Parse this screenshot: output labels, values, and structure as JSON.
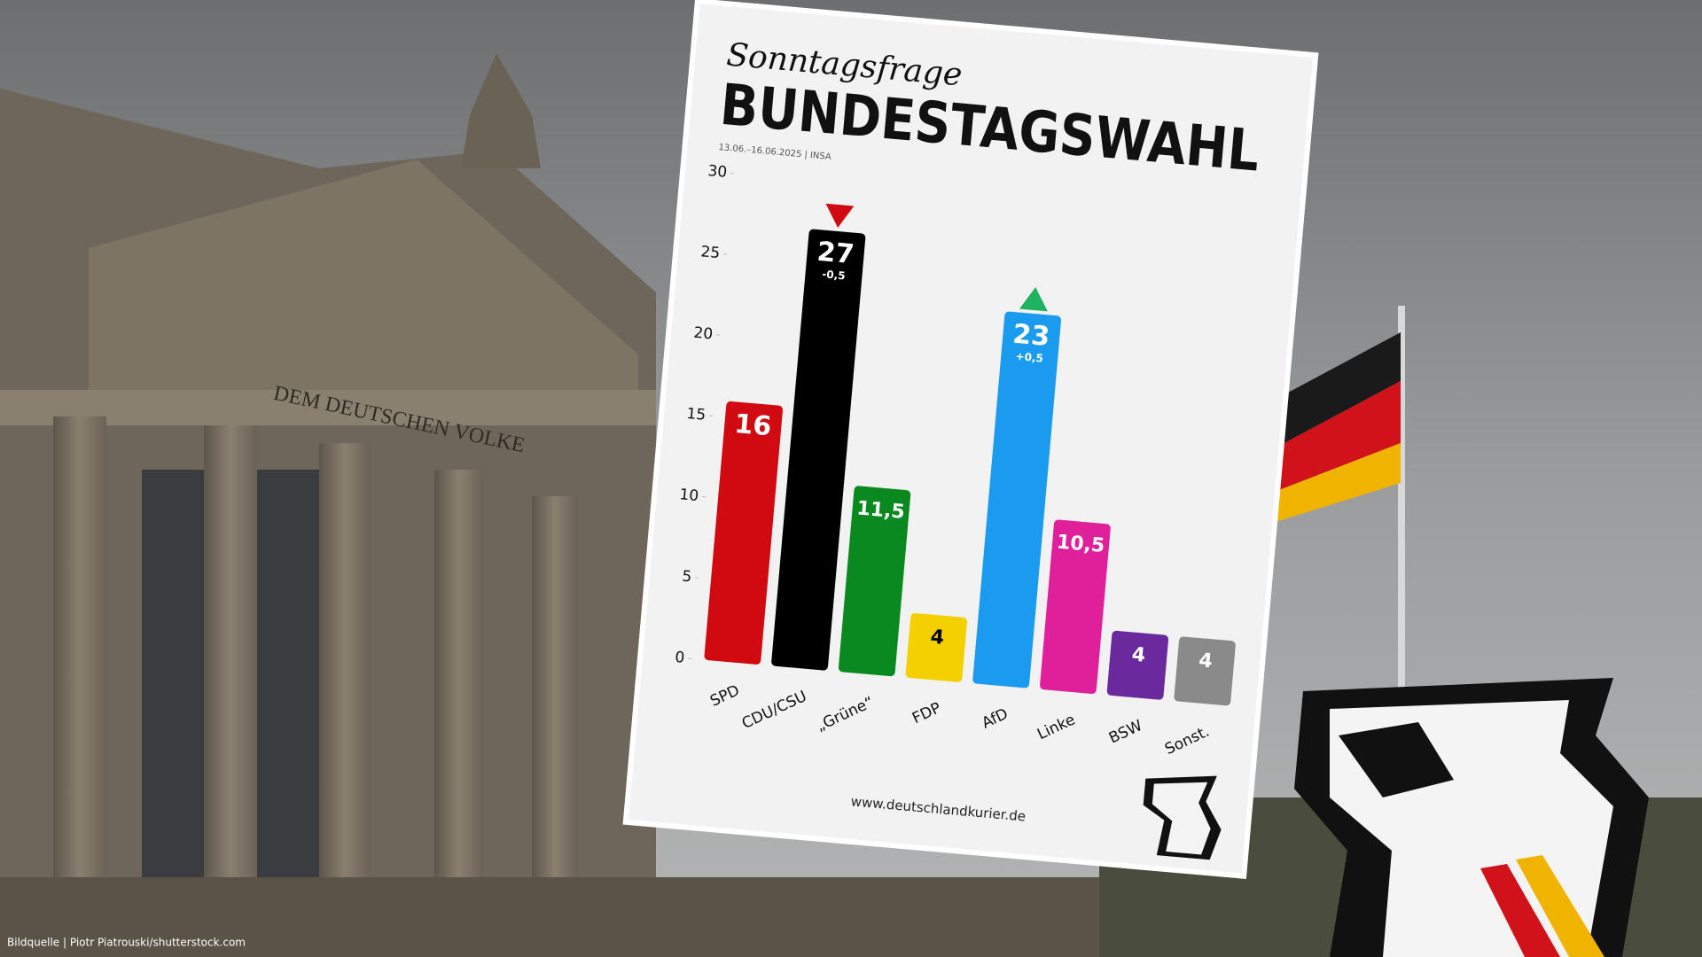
{
  "chart_data": {
    "type": "bar",
    "subtitle": "Sonntagsfrage",
    "title": "BUNDESTAGSWAHL",
    "note": "13.06.–16.06.2025 | INSA",
    "categories": [
      "SPD",
      "CDU/CSU",
      "„Grüne“",
      "FDP",
      "AfD",
      "Linke",
      "BSW",
      "Sonst."
    ],
    "values": [
      16,
      27,
      11.5,
      4,
      23,
      10.5,
      4,
      4
    ],
    "value_labels": [
      "16",
      "27",
      "11,5",
      "4",
      "23",
      "10,5",
      "4",
      "4"
    ],
    "colors": [
      "#d10a11",
      "#000000",
      "#0a8a1e",
      "#f5d000",
      "#1a9bf0",
      "#e0209a",
      "#6a2a9e",
      "#8a8a8a"
    ],
    "value_label_colors": [
      "#ffffff",
      "#ffffff",
      "#ffffff",
      "#000000",
      "#ffffff",
      "#ffffff",
      "#ffffff",
      "#ffffff"
    ],
    "change_labels": [
      null,
      "-0,5",
      null,
      null,
      "+0,5",
      null,
      null,
      null
    ],
    "change_arrows": [
      null,
      "down",
      null,
      null,
      "up",
      null,
      null,
      null
    ],
    "change_arrow_colors": [
      null,
      "#d10a11",
      null,
      null,
      "#1fb360",
      null,
      null,
      null
    ],
    "ylim": [
      0,
      30
    ],
    "yticks": [
      0,
      5,
      10,
      15,
      20,
      25,
      30
    ],
    "grid": false,
    "footer": "www.deutschlandkurier.de"
  },
  "background": {
    "inscription": "DEM DEUTSCHEN VOLKE",
    "credit": "Bildquelle | Piotr Piatrouski/shutterstock.com"
  }
}
